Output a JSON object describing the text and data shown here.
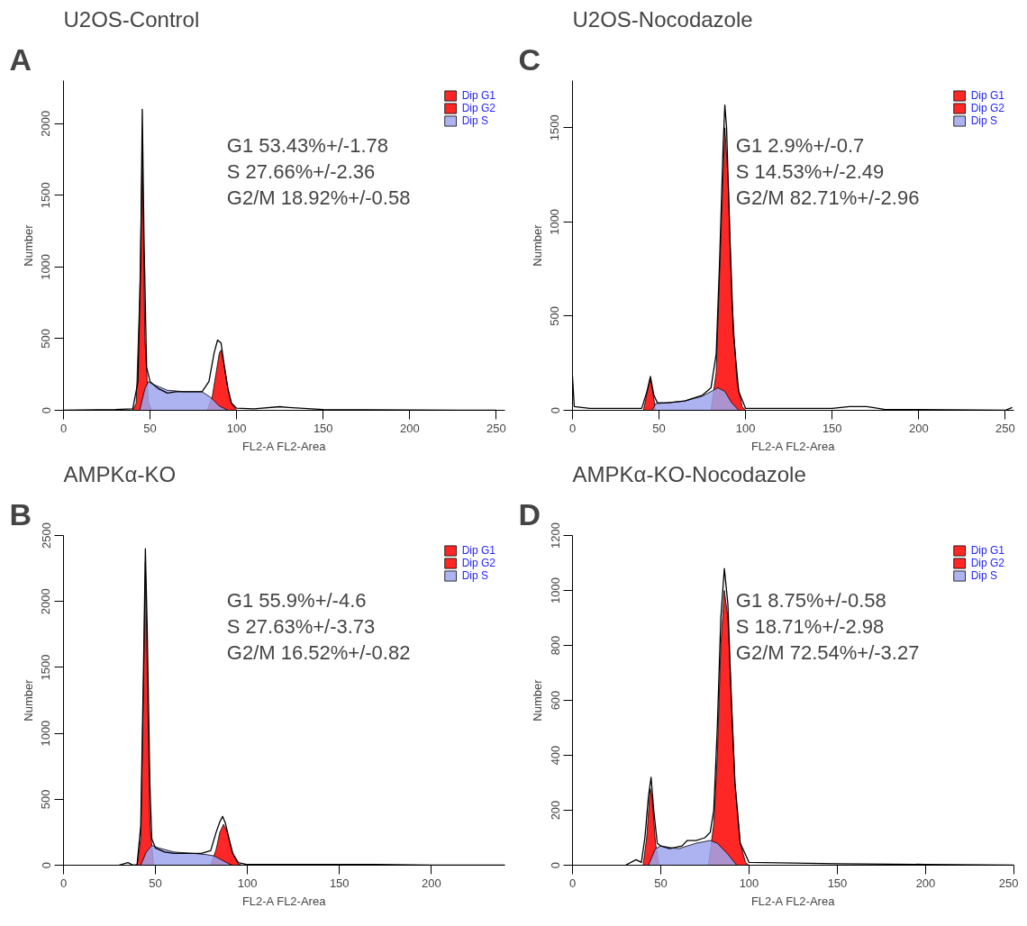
{
  "chart_data": [
    {
      "type": "area",
      "title": "U2OS-Control",
      "xlabel": "FL2-A FL2-Area",
      "ylabel": "Number",
      "annotations": [
        "A",
        "G1  53.43%+/-1.78",
        "S    27.66%+/-2.36",
        "G2/M  18.92%+/-0.58"
      ],
      "xlim": [
        0,
        255
      ],
      "ylim": [
        0,
        2300
      ],
      "xticks": [
        0,
        50,
        100,
        150,
        200,
        250
      ],
      "yticks": [
        0,
        500,
        1000,
        1500,
        2000
      ],
      "legend": "top right",
      "series": [
        {
          "name": "Dip G1",
          "color": "#ff0000",
          "x": [
            40,
            42,
            44,
            45.5,
            47,
            49,
            51
          ],
          "values": [
            0,
            50,
            800,
            1800,
            500,
            60,
            0
          ]
        },
        {
          "name": "Dip G2",
          "color": "#ff0000",
          "x": [
            83,
            86,
            88,
            90,
            91,
            93,
            95,
            97,
            100
          ],
          "values": [
            0,
            100,
            250,
            400,
            420,
            300,
            150,
            50,
            0
          ]
        },
        {
          "name": "Dip S",
          "color": "#9fa6ee",
          "x": [
            44,
            47,
            49,
            52,
            60,
            70,
            80,
            85,
            90,
            95
          ],
          "values": [
            0,
            150,
            200,
            180,
            140,
            130,
            130,
            90,
            30,
            0
          ]
        },
        {
          "type": "line",
          "color": "#000000",
          "x": [
            0,
            30,
            40,
            43,
            44.5,
            45.5,
            46.5,
            48,
            50,
            55,
            60,
            65,
            70,
            75,
            80,
            84,
            87,
            89,
            91,
            93,
            95,
            97,
            100,
            110,
            125,
            130,
            150,
            200,
            250
          ],
          "values": [
            0,
            5,
            10,
            200,
            1000,
            2100,
            1200,
            300,
            200,
            150,
            120,
            130,
            130,
            130,
            130,
            200,
            400,
            490,
            470,
            300,
            150,
            50,
            15,
            10,
            25,
            20,
            5,
            2,
            0
          ]
        }
      ]
    },
    {
      "type": "area",
      "title": "U2OS-Nocodazole",
      "xlabel": "FL2-A FL2-Area",
      "ylabel": "Number",
      "annotations": [
        "C",
        "G1   2.9%+/-0.7",
        "S     14.53%+/-2.49",
        "G2/M  82.71%+/-2.96"
      ],
      "xlim": [
        0,
        255
      ],
      "ylim": [
        0,
        1750
      ],
      "xticks": [
        0,
        50,
        100,
        150,
        200,
        250
      ],
      "yticks": [
        0,
        500,
        1000,
        1500
      ],
      "legend": "top right",
      "series": [
        {
          "name": "Dip G1",
          "color": "#ff0000",
          "x": [
            41,
            43,
            45,
            47,
            48
          ],
          "values": [
            0,
            90,
            170,
            60,
            0
          ]
        },
        {
          "name": "Dip G2",
          "color": "#ff0000",
          "x": [
            80,
            83,
            86,
            88,
            90,
            92,
            95,
            98,
            100
          ],
          "values": [
            0,
            200,
            1000,
            1500,
            1200,
            600,
            150,
            20,
            0
          ]
        },
        {
          "name": "Dip S",
          "color": "#9fa6ee",
          "x": [
            46,
            48,
            55,
            65,
            75,
            80,
            84,
            88,
            92,
            96
          ],
          "values": [
            0,
            35,
            40,
            50,
            75,
            100,
            120,
            100,
            40,
            0
          ]
        },
        {
          "type": "line",
          "color": "#000000",
          "x": [
            0,
            1,
            10,
            40,
            43,
            45,
            47,
            49,
            55,
            65,
            75,
            80,
            83,
            85,
            87,
            88,
            89,
            91,
            93,
            96,
            100,
            150,
            160,
            170,
            180,
            250,
            254
          ],
          "values": [
            180,
            20,
            10,
            10,
            100,
            180,
            80,
            40,
            40,
            50,
            80,
            120,
            300,
            800,
            1400,
            1620,
            1500,
            900,
            400,
            100,
            10,
            10,
            20,
            20,
            5,
            0,
            15
          ]
        }
      ]
    },
    {
      "type": "area",
      "title": "AMPKα-KO",
      "xlabel": "FL2-A FL2-Area",
      "ylabel": "Number",
      "annotations": [
        "B",
        "G1   55.9%+/-4.6",
        "S     27.63%+/-3.73",
        "G2/M   16.52%+/-0.82"
      ],
      "xlim": [
        0,
        240
      ],
      "ylim": [
        0,
        2500
      ],
      "xticks": [
        0,
        50,
        100,
        150,
        200
      ],
      "yticks": [
        0,
        500,
        1000,
        1500,
        2000,
        2500
      ],
      "legend": "top right",
      "series": [
        {
          "name": "Dip G1",
          "color": "#ff0000",
          "x": [
            40,
            42,
            43.5,
            44.5,
            45.5,
            47,
            49
          ],
          "values": [
            0,
            200,
            1400,
            2300,
            1500,
            300,
            0
          ]
        },
        {
          "name": "Dip G2",
          "color": "#ff0000",
          "x": [
            80,
            83,
            85,
            87,
            89,
            92,
            95,
            97
          ],
          "values": [
            0,
            120,
            250,
            310,
            250,
            90,
            10,
            0
          ]
        },
        {
          "name": "Dip S",
          "color": "#9fa6ee",
          "x": [
            42,
            45,
            48,
            52,
            60,
            70,
            78,
            82,
            86,
            90,
            92
          ],
          "values": [
            0,
            100,
            150,
            130,
            100,
            90,
            80,
            70,
            40,
            10,
            0
          ]
        },
        {
          "type": "line",
          "color": "#000000",
          "x": [
            30,
            35,
            38,
            40,
            42,
            43.5,
            44.5,
            45.5,
            47,
            48,
            50,
            55,
            60,
            70,
            75,
            80,
            83,
            85,
            86.5,
            88,
            90,
            92,
            95,
            100,
            170,
            200,
            240
          ],
          "values": [
            0,
            20,
            0,
            5,
            300,
            1500,
            2400,
            1800,
            600,
            200,
            130,
            100,
            90,
            90,
            90,
            110,
            250,
            330,
            370,
            320,
            200,
            90,
            20,
            5,
            5,
            0,
            0
          ]
        }
      ]
    },
    {
      "type": "area",
      "title": "AMPKα-KO-Nocodazole",
      "xlabel": "FL2-A FL2-Area",
      "ylabel": "Number",
      "annotations": [
        "D",
        "G1  8.75%+/-0.58",
        "S     18.71%+/-2.98",
        "G2/M  72.54%+/-3.27"
      ],
      "xlim": [
        0,
        250
      ],
      "ylim": [
        0,
        1200
      ],
      "xticks": [
        0,
        50,
        100,
        150,
        200,
        250
      ],
      "yticks": [
        0,
        200,
        400,
        600,
        800,
        1000,
        1200
      ],
      "legend": "top right",
      "series": [
        {
          "name": "Dip G1",
          "color": "#ff0000",
          "x": [
            40,
            42,
            44,
            45,
            47,
            49
          ],
          "values": [
            0,
            100,
            280,
            250,
            80,
            0
          ]
        },
        {
          "name": "Dip G2",
          "color": "#ff0000",
          "x": [
            77,
            80,
            82,
            84,
            86,
            88,
            90,
            92,
            95,
            98,
            100
          ],
          "values": [
            0,
            150,
            400,
            800,
            1000,
            900,
            600,
            300,
            80,
            10,
            0
          ]
        },
        {
          "name": "Dip S",
          "color": "#9fa6ee",
          "x": [
            43,
            47,
            50,
            60,
            70,
            78,
            82,
            88,
            93
          ],
          "values": [
            0,
            60,
            70,
            60,
            80,
            90,
            80,
            40,
            0
          ]
        },
        {
          "type": "line",
          "color": "#000000",
          "x": [
            30,
            36,
            39,
            41,
            43,
            44.5,
            46,
            48,
            50,
            55,
            62,
            65,
            70,
            75,
            78,
            80,
            82,
            84,
            86,
            88,
            90,
            92,
            95,
            100,
            150,
            200,
            250
          ],
          "values": [
            0,
            20,
            10,
            100,
            250,
            320,
            200,
            80,
            70,
            60,
            70,
            90,
            90,
            100,
            120,
            200,
            500,
            900,
            1080,
            950,
            600,
            300,
            80,
            10,
            5,
            3,
            0
          ]
        }
      ]
    }
  ]
}
